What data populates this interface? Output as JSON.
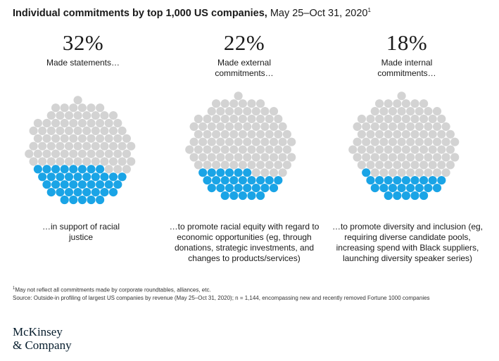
{
  "header": {
    "title_bold": "Individual commitments by top 1,000 US companies,",
    "title_rest": " May 25–Oct 31, 2020",
    "title_footnote": "1"
  },
  "chart_data": [
    {
      "type": "dot_proportion",
      "value_percent": 32,
      "label": "32%",
      "subtitle": "Made statements…",
      "caption": "…in support of racial justice",
      "colors": {
        "highlight": "#1aa4e6",
        "base": "#d3d3d3"
      }
    },
    {
      "type": "dot_proportion",
      "value_percent": 22,
      "label": "22%",
      "subtitle": "Made external commitments…",
      "caption": "…to promote racial equity with regard to economic opportunities (eg, through donations, strategic investments, and changes to products/services)",
      "colors": {
        "highlight": "#1aa4e6",
        "base": "#d3d3d3"
      }
    },
    {
      "type": "dot_proportion",
      "value_percent": 18,
      "label": "18%",
      "subtitle": "Made internal commitments…",
      "caption": "…to promote diversity and inclusion (eg, requiring diverse candidate pools, increasing spend with Black suppliers, launching diversity speaker series)",
      "colors": {
        "highlight": "#1aa4e6",
        "base": "#d3d3d3"
      }
    }
  ],
  "footnotes": {
    "note1_marker": "1",
    "note1": "May not reflect all commitments made by corporate roundtables, alliances, etc.",
    "source": "Source: Outside-in profiling of largest US companies by revenue (May 25–Oct 31, 2020); n = 1,144, encompassing new and recently removed Fortune 1000 companies"
  },
  "logo": {
    "line1": "McKinsey",
    "line2": "& Company"
  }
}
